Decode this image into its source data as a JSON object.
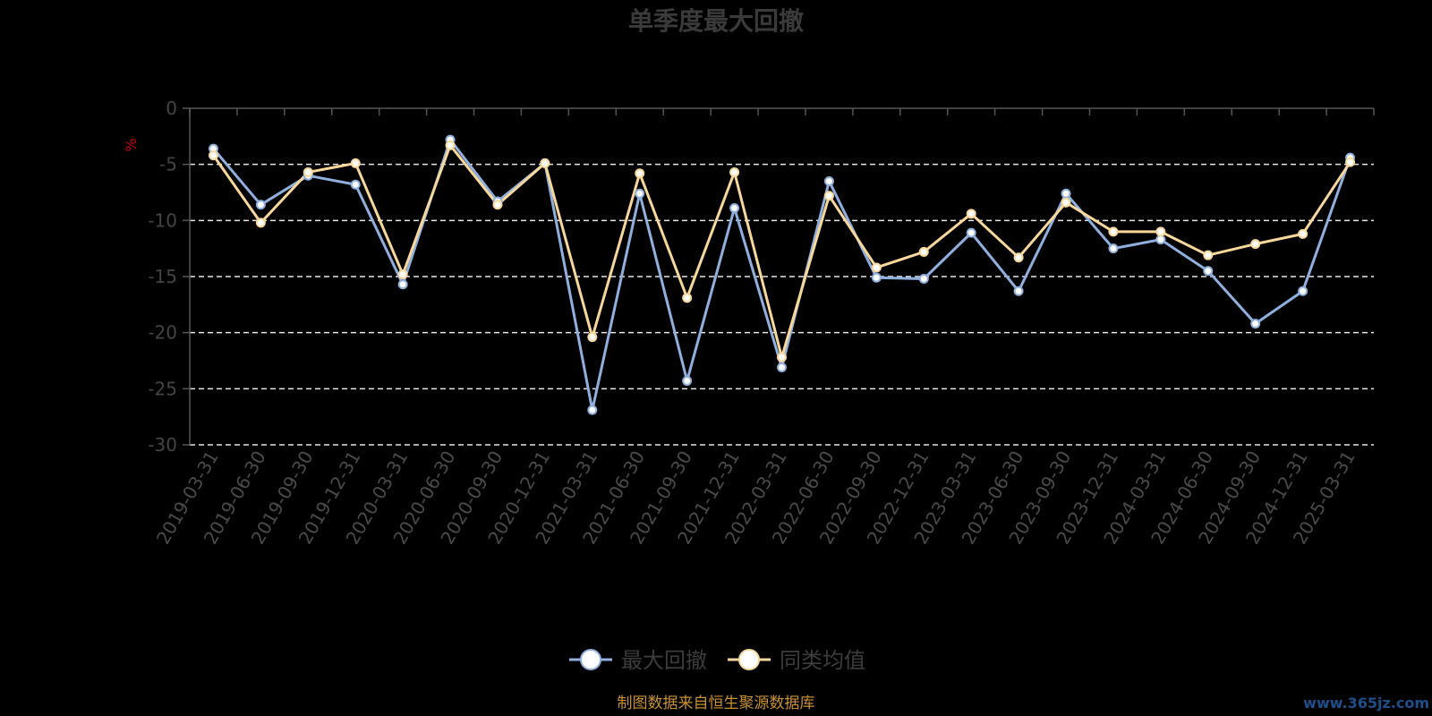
{
  "chart_data": {
    "type": "line",
    "title": "单季度最大回撤",
    "ylabel": "%",
    "ylim": [
      -30,
      0
    ],
    "yticks": [
      0,
      -5,
      -10,
      -15,
      -20,
      -25,
      -30
    ],
    "grid": true,
    "legend_position": "bottom-center",
    "categories": [
      "2019-03-31",
      "2019-06-30",
      "2019-09-30",
      "2019-12-31",
      "2020-03-31",
      "2020-06-30",
      "2020-09-30",
      "2020-12-31",
      "2021-03-31",
      "2021-06-30",
      "2021-09-30",
      "2021-12-31",
      "2022-03-31",
      "2022-06-30",
      "2022-09-30",
      "2022-12-31",
      "2023-03-31",
      "2023-06-30",
      "2023-09-30",
      "2023-12-31",
      "2024-03-31",
      "2024-06-30",
      "2024-09-30",
      "2024-12-31",
      "2025-03-31"
    ],
    "series": [
      {
        "name": "最大回撤",
        "color": "#8fb0df",
        "values": [
          -3.6,
          -8.6,
          -6.0,
          -6.8,
          -15.7,
          -2.8,
          -8.3,
          -4.9,
          -26.9,
          -7.6,
          -24.3,
          -8.9,
          -23.1,
          -6.5,
          -15.1,
          -15.2,
          -11.1,
          -16.3,
          -7.6,
          -12.5,
          -11.7,
          -14.5,
          -19.2,
          -16.3,
          -4.4
        ]
      },
      {
        "name": "同类均值",
        "color": "#f8d79a",
        "values": [
          -4.2,
          -10.2,
          -5.7,
          -4.9,
          -14.8,
          -3.3,
          -8.6,
          -4.9,
          -20.4,
          -5.8,
          -16.9,
          -5.7,
          -22.2,
          -7.8,
          -14.2,
          -12.8,
          -9.4,
          -13.3,
          -8.4,
          -11.0,
          -11.0,
          -13.1,
          -12.1,
          -11.2,
          -4.8
        ]
      }
    ]
  },
  "source_note": "制图数据来自恒生聚源数据库",
  "watermark": "www.365jz.com"
}
